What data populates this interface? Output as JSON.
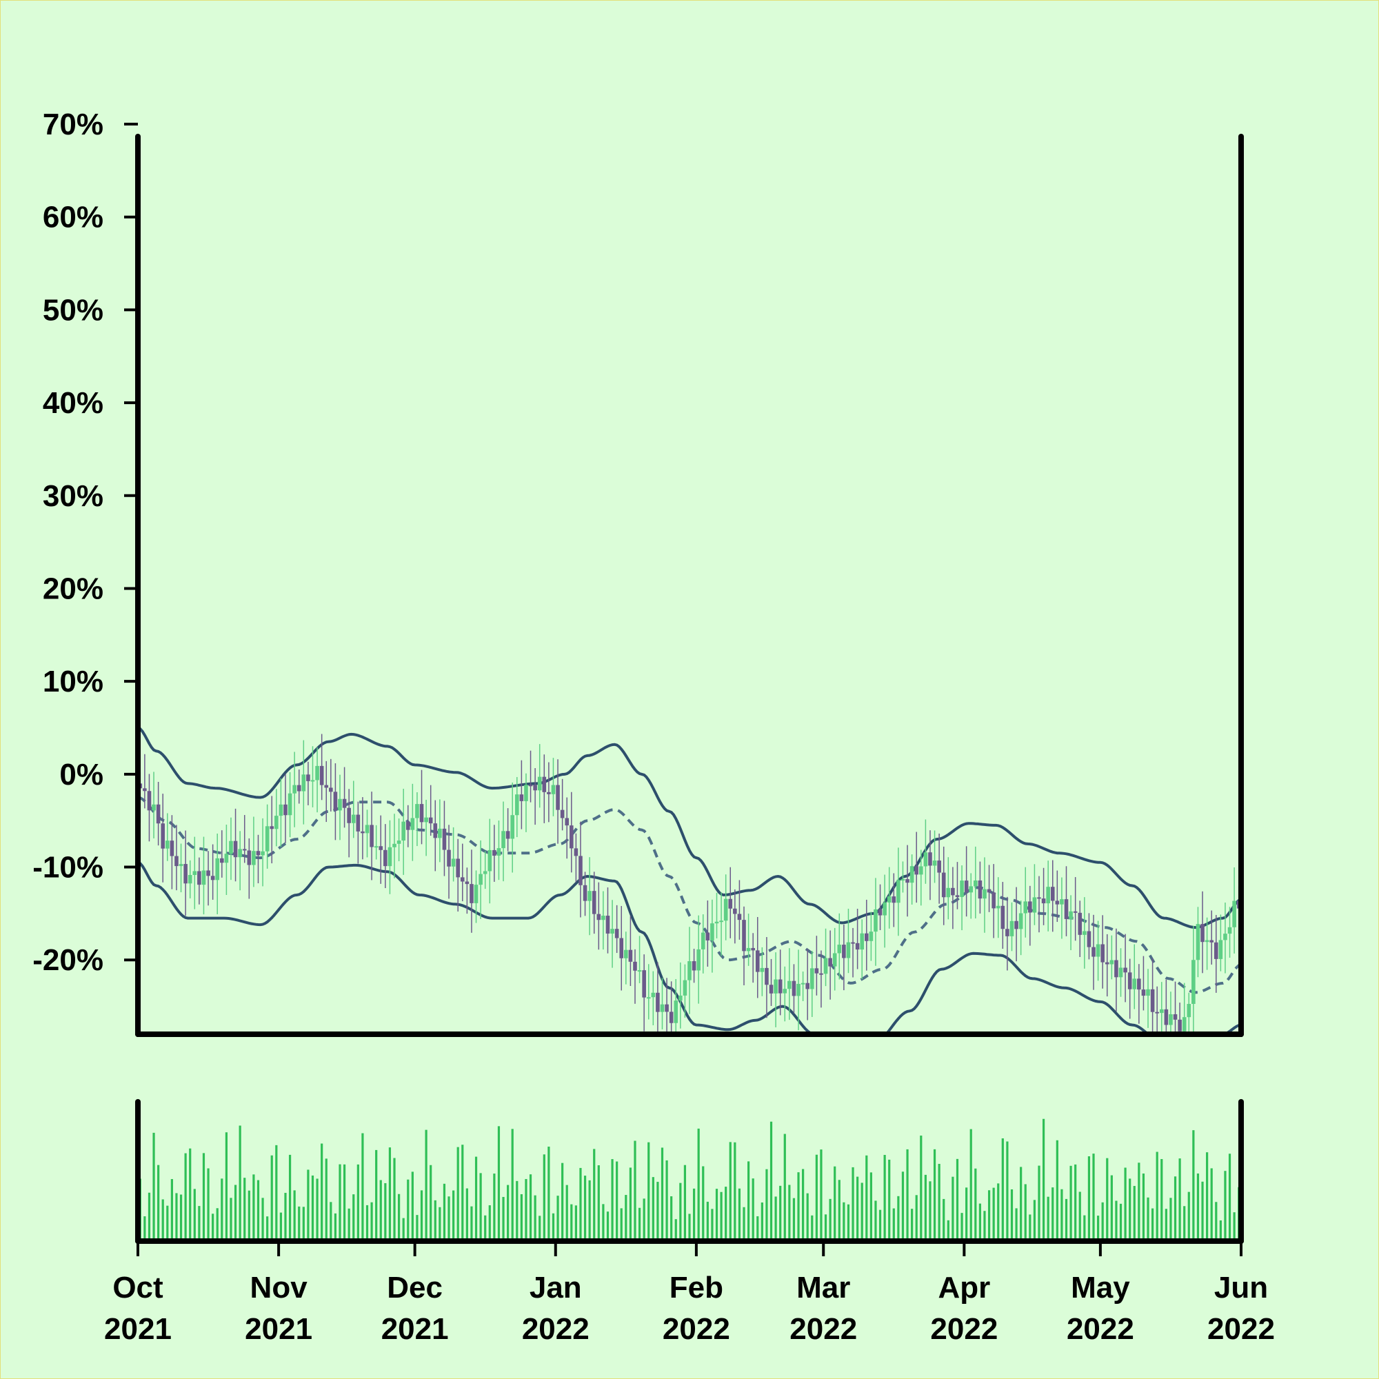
{
  "chart_data": {
    "type": "candlestick",
    "y_format": "percent",
    "ylim": [
      -28,
      70
    ],
    "yticks": [
      70,
      60,
      50,
      40,
      30,
      20,
      10,
      0,
      -10,
      -20
    ],
    "ytick_labels": [
      "70%",
      "60%",
      "50%",
      "40%",
      "30%",
      "20%",
      "10%",
      "0%",
      "-10%",
      "-20%"
    ],
    "xlim": [
      "2021-10-01",
      "2022-06-01"
    ],
    "xticks": [
      {
        "date": "2021-10-01",
        "month": "Oct",
        "year": "2021"
      },
      {
        "date": "2021-11-01",
        "month": "Nov",
        "year": "2021"
      },
      {
        "date": "2021-12-01",
        "month": "Dec",
        "year": "2021"
      },
      {
        "date": "2022-01-01",
        "month": "Jan",
        "year": "2022"
      },
      {
        "date": "2022-02-01",
        "month": "Feb",
        "year": "2022"
      },
      {
        "date": "2022-03-01",
        "month": "Mar",
        "year": "2022"
      },
      {
        "date": "2022-04-01",
        "month": "Apr",
        "year": "2022"
      },
      {
        "date": "2022-05-01",
        "month": "May",
        "year": "2022"
      },
      {
        "date": "2022-06-01",
        "month": "Jun",
        "year": "2022"
      }
    ],
    "close_anchors": [
      [
        "2021-10-01",
        -1
      ],
      [
        "2021-10-04",
        -3
      ],
      [
        "2021-10-08",
        -8
      ],
      [
        "2021-10-12",
        -11
      ],
      [
        "2021-10-17",
        -11
      ],
      [
        "2021-10-22",
        -8
      ],
      [
        "2021-10-27",
        -9
      ],
      [
        "2021-11-02",
        -4
      ],
      [
        "2021-11-06",
        -1
      ],
      [
        "2021-11-10",
        0
      ],
      [
        "2021-11-14",
        -3
      ],
      [
        "2021-11-20",
        -6
      ],
      [
        "2021-11-25",
        -9
      ],
      [
        "2021-11-29",
        -6
      ],
      [
        "2021-12-02",
        -4
      ],
      [
        "2021-12-06",
        -6
      ],
      [
        "2021-12-10",
        -10
      ],
      [
        "2021-12-14",
        -13
      ],
      [
        "2021-12-18",
        -9
      ],
      [
        "2021-12-21",
        -7
      ],
      [
        "2021-12-25",
        -2
      ],
      [
        "2021-12-28",
        -1
      ],
      [
        "2022-01-01",
        -2
      ],
      [
        "2022-01-04",
        -6
      ],
      [
        "2022-01-08",
        -13
      ],
      [
        "2022-01-12",
        -16
      ],
      [
        "2022-01-18",
        -20
      ],
      [
        "2022-01-22",
        -24
      ],
      [
        "2022-01-27",
        -26
      ],
      [
        "2022-01-31",
        -21
      ],
      [
        "2022-02-04",
        -17
      ],
      [
        "2022-02-09",
        -14
      ],
      [
        "2022-02-13",
        -19
      ],
      [
        "2022-02-18",
        -23
      ],
      [
        "2022-02-24",
        -23
      ],
      [
        "2022-03-01",
        -21
      ],
      [
        "2022-03-05",
        -19
      ],
      [
        "2022-03-10",
        -18
      ],
      [
        "2022-03-15",
        -14
      ],
      [
        "2022-03-20",
        -11
      ],
      [
        "2022-03-25",
        -9
      ],
      [
        "2022-03-29",
        -13
      ],
      [
        "2022-04-03",
        -12
      ],
      [
        "2022-04-07",
        -13
      ],
      [
        "2022-04-11",
        -17
      ],
      [
        "2022-04-16",
        -14
      ],
      [
        "2022-04-20",
        -13
      ],
      [
        "2022-04-25",
        -15
      ],
      [
        "2022-04-30",
        -19
      ],
      [
        "2022-05-05",
        -21
      ],
      [
        "2022-05-10",
        -23
      ],
      [
        "2022-05-15",
        -26
      ],
      [
        "2022-05-20",
        -27
      ],
      [
        "2022-05-23",
        -17
      ],
      [
        "2022-05-27",
        -19
      ],
      [
        "2022-06-01",
        -14
      ]
    ],
    "bands": {
      "upper": [
        [
          "2021-10-01",
          5
        ],
        [
          "2021-10-05",
          2.5
        ],
        [
          "2021-10-12",
          -1
        ],
        [
          "2021-10-18",
          -1.5
        ],
        [
          "2021-10-28",
          -2.5
        ],
        [
          "2021-11-05",
          1
        ],
        [
          "2021-11-12",
          3.5
        ],
        [
          "2021-11-17",
          4.3
        ],
        [
          "2021-11-25",
          3
        ],
        [
          "2021-12-01",
          1
        ],
        [
          "2021-12-10",
          0.2
        ],
        [
          "2021-12-18",
          -1.5
        ],
        [
          "2021-12-28",
          -1
        ],
        [
          "2022-01-03",
          0
        ],
        [
          "2022-01-08",
          2
        ],
        [
          "2022-01-14",
          3.2
        ],
        [
          "2022-01-20",
          0
        ],
        [
          "2022-01-26",
          -4
        ],
        [
          "2022-02-01",
          -9
        ],
        [
          "2022-02-07",
          -13
        ],
        [
          "2022-02-13",
          -12.5
        ],
        [
          "2022-02-19",
          -11
        ],
        [
          "2022-02-26",
          -14
        ],
        [
          "2022-03-05",
          -16
        ],
        [
          "2022-03-12",
          -15
        ],
        [
          "2022-03-19",
          -11
        ],
        [
          "2022-03-26",
          -7
        ],
        [
          "2022-04-02",
          -5.3
        ],
        [
          "2022-04-08",
          -5.5
        ],
        [
          "2022-04-15",
          -7.5
        ],
        [
          "2022-04-22",
          -8.5
        ],
        [
          "2022-05-01",
          -9.5
        ],
        [
          "2022-05-08",
          -12
        ],
        [
          "2022-05-15",
          -15.5
        ],
        [
          "2022-05-22",
          -16.5
        ],
        [
          "2022-05-28",
          -15.5
        ],
        [
          "2022-06-01",
          -13.5
        ]
      ],
      "middle": [
        [
          "2021-10-01",
          -2.5
        ],
        [
          "2021-10-07",
          -5
        ],
        [
          "2021-10-14",
          -8
        ],
        [
          "2021-10-20",
          -8.5
        ],
        [
          "2021-10-28",
          -9
        ],
        [
          "2021-11-05",
          -7
        ],
        [
          "2021-11-12",
          -4
        ],
        [
          "2021-11-18",
          -3
        ],
        [
          "2021-11-25",
          -3
        ],
        [
          "2021-12-02",
          -6
        ],
        [
          "2021-12-10",
          -6.5
        ],
        [
          "2021-12-18",
          -8.5
        ],
        [
          "2021-12-26",
          -8.5
        ],
        [
          "2022-01-02",
          -7.5
        ],
        [
          "2022-01-08",
          -5
        ],
        [
          "2022-01-14",
          -3.8
        ],
        [
          "2022-01-20",
          -6
        ],
        [
          "2022-01-26",
          -11
        ],
        [
          "2022-02-01",
          -16
        ],
        [
          "2022-02-08",
          -20
        ],
        [
          "2022-02-14",
          -19.5
        ],
        [
          "2022-02-22",
          -18
        ],
        [
          "2022-02-28",
          -19.5
        ],
        [
          "2022-03-07",
          -22.5
        ],
        [
          "2022-03-14",
          -21
        ],
        [
          "2022-03-21",
          -17
        ],
        [
          "2022-03-28",
          -14
        ],
        [
          "2022-04-04",
          -12.2
        ],
        [
          "2022-04-11",
          -13.5
        ],
        [
          "2022-04-18",
          -15
        ],
        [
          "2022-04-25",
          -15.5
        ],
        [
          "2022-05-02",
          -16.5
        ],
        [
          "2022-05-09",
          -18
        ],
        [
          "2022-05-16",
          -22
        ],
        [
          "2022-05-22",
          -23.5
        ],
        [
          "2022-05-28",
          -22.5
        ],
        [
          "2022-06-01",
          -20.5
        ]
      ],
      "lower": [
        [
          "2021-10-01",
          -9.5
        ],
        [
          "2021-10-05",
          -12
        ],
        [
          "2021-10-12",
          -15.5
        ],
        [
          "2021-10-20",
          -15.5
        ],
        [
          "2021-10-28",
          -16.2
        ],
        [
          "2021-11-05",
          -13
        ],
        [
          "2021-11-12",
          -10
        ],
        [
          "2021-11-18",
          -9.8
        ],
        [
          "2021-11-25",
          -10.5
        ],
        [
          "2021-12-02",
          -13
        ],
        [
          "2021-12-10",
          -14
        ],
        [
          "2021-12-18",
          -15.5
        ],
        [
          "2021-12-26",
          -15.5
        ],
        [
          "2022-01-02",
          -13
        ],
        [
          "2022-01-08",
          -11
        ],
        [
          "2022-01-14",
          -11.5
        ],
        [
          "2022-01-20",
          -17
        ],
        [
          "2022-01-26",
          -23
        ],
        [
          "2022-02-01",
          -27
        ],
        [
          "2022-02-08",
          -27.5
        ],
        [
          "2022-02-14",
          -26.5
        ],
        [
          "2022-02-20",
          -25
        ],
        [
          "2022-02-27",
          -28
        ],
        [
          "2022-03-05",
          -31
        ],
        [
          "2022-03-12",
          -29
        ],
        [
          "2022-03-20",
          -25.5
        ],
        [
          "2022-03-27",
          -21
        ],
        [
          "2022-04-03",
          -19.3
        ],
        [
          "2022-04-09",
          -19.5
        ],
        [
          "2022-04-16",
          -22
        ],
        [
          "2022-04-23",
          -23
        ],
        [
          "2022-05-01",
          -24.5
        ],
        [
          "2022-05-08",
          -27
        ],
        [
          "2022-05-15",
          -29
        ],
        [
          "2022-05-22",
          -30
        ],
        [
          "2022-05-28",
          -28
        ],
        [
          "2022-06-01",
          -27
        ]
      ]
    },
    "volume": {
      "baseline": 10,
      "pattern": [
        38,
        55,
        30,
        72,
        20,
        62,
        44,
        90,
        26,
        58,
        15,
        68,
        33,
        80,
        48,
        22,
        95,
        36,
        60,
        12,
        75,
        41,
        53,
        28,
        86,
        18,
        64,
        35,
        70,
        46
      ]
    },
    "colors": {
      "background": "#dbfdd8",
      "up_candle": "#5ecf85",
      "down_candle": "#6b5a8a",
      "band_line": "#2d4f6c",
      "middle_line": "#4e6f88",
      "volume_bar": "#2fbf56",
      "axis": "#000000"
    }
  }
}
